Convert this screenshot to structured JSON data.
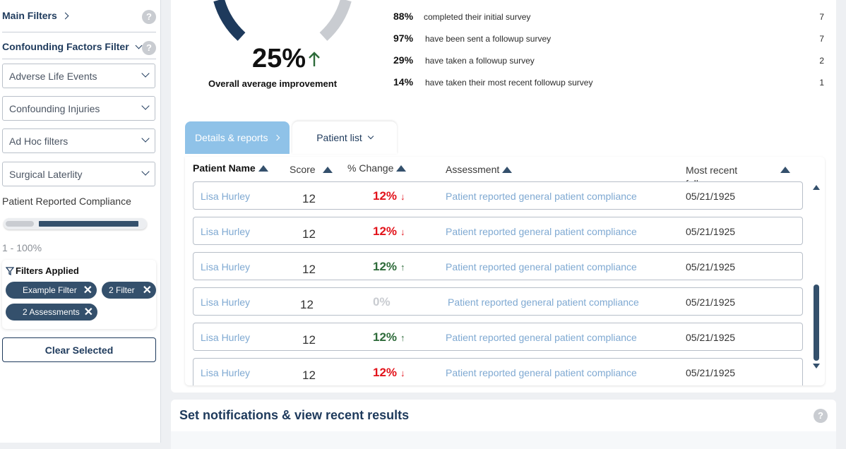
{
  "sidebar": {
    "main_filters": "Main Filters",
    "confounding_filter": "Confounding Factors Filter",
    "help_glyph": "?",
    "selects": [
      "Adverse Life Events",
      "Confounding Injuries",
      "Ad Hoc filters",
      "Surgical Laterlity"
    ],
    "compliance_label": "Patient Reported Compliance",
    "compliance_range_text": "1 - 100%",
    "compliance_range": {
      "min": 1,
      "max": 100
    },
    "filters_applied": "Filters Applied",
    "chips": [
      "Example Filter",
      "2 Filter",
      "2 Assessments"
    ],
    "clear_button": "Clear Selected"
  },
  "summary": {
    "improvement_value": "25%",
    "improvement_label": "Overall average improvement",
    "stats": [
      {
        "pct": "88%",
        "text": "completed their initial survey",
        "count": "7"
      },
      {
        "pct": "97%",
        "text": "have been sent a followup survey",
        "count": "7"
      },
      {
        "pct": "29%",
        "text": "have taken a followup survey",
        "count": "2"
      },
      {
        "pct": "14%",
        "text": "have taken their most recent followup survey",
        "count": "1"
      }
    ]
  },
  "tabs": {
    "details": "Details & reports",
    "patient_list": "Patient list"
  },
  "table": {
    "headers": {
      "name": "Patient Name",
      "score": "Score",
      "change": "% Change",
      "assessment": "Assessment",
      "followup": "Most recent followup"
    },
    "rows": [
      {
        "name": "Lisa Hurley",
        "score": "12",
        "change": "12%",
        "dir": "down",
        "assessment": "Patient reported general patient compliance",
        "date": "05/21/1925"
      },
      {
        "name": "Lisa Hurley",
        "score": "12",
        "change": "12%",
        "dir": "down",
        "assessment": "Patient reported general patient compliance",
        "date": "05/21/1925"
      },
      {
        "name": "Lisa Hurley",
        "score": "12",
        "change": "12%",
        "dir": "up",
        "assessment": "Patient reported general patient compliance",
        "date": "05/21/1925"
      },
      {
        "name": "Lisa Hurley",
        "score": "12",
        "change": "0%",
        "dir": "none",
        "assessment": "Patient reported general patient compliance",
        "date": "05/21/1925"
      },
      {
        "name": "Lisa Hurley",
        "score": "12",
        "change": "12%",
        "dir": "up",
        "assessment": "Patient reported general patient compliance",
        "date": "05/21/1925"
      },
      {
        "name": "Lisa Hurley",
        "score": "12",
        "change": "12%",
        "dir": "down",
        "assessment": "Patient reported general patient compliance",
        "date": "05/21/1925"
      }
    ]
  },
  "notifications": {
    "title": "Set notifications & view recent results"
  },
  "colors": {
    "navy": "#1e3a5c",
    "up": "#2e6b3a",
    "down": "#e2121a",
    "link": "#7fa9d2",
    "tab_active": "#8fc2e8"
  }
}
